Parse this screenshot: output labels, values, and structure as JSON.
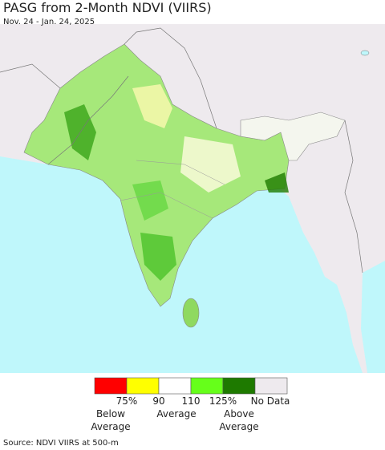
{
  "header": {
    "title": "PASG from 2-Month NDVI (VIIRS)",
    "subtitle": "Nov. 24 - Jan. 24, 2025"
  },
  "legend": {
    "colors": [
      "#ff0000",
      "#ffff00",
      "#ffffff",
      "#66ff1a",
      "#1e7a00",
      "#eeeaee"
    ],
    "tick_labels": [
      "75%",
      "90",
      "110",
      "125%",
      "No Data"
    ],
    "group_labels": [
      [
        "Below",
        "Average"
      ],
      [
        "Average"
      ],
      [
        "Above",
        "Average"
      ]
    ]
  },
  "source": "Source: NDVI VIIRS at 500-m"
}
